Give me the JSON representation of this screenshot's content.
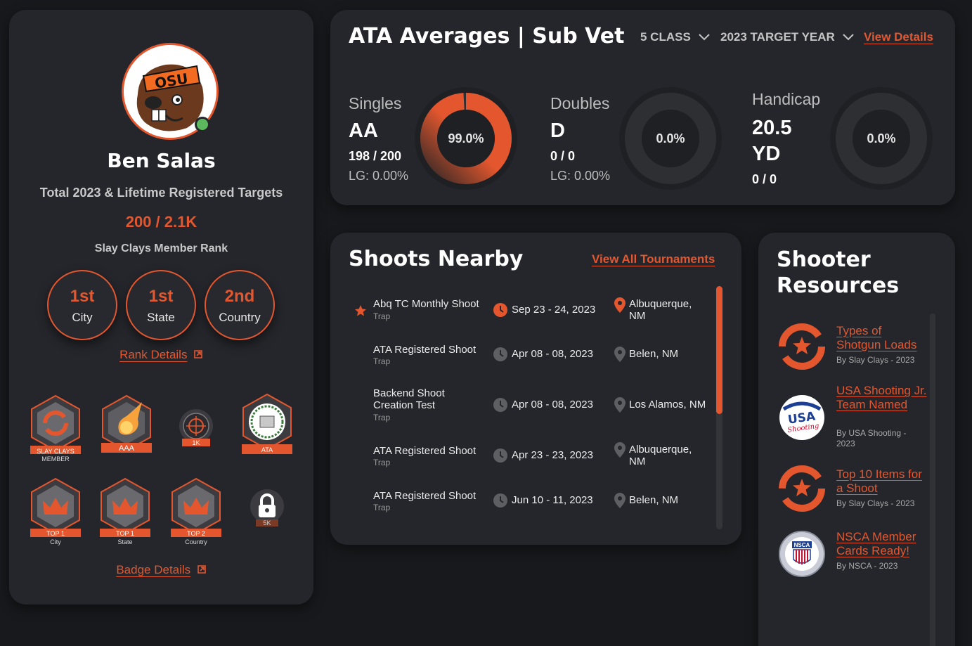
{
  "profile": {
    "avatar_logo_text": "OSU",
    "name": "Ben Salas",
    "targets_label": "Total 2023 & Lifetime Registered Targets",
    "targets_value": "200 / 2.1K",
    "rank_label": "Slay Clays Member Rank",
    "ranks": [
      {
        "value": "1st",
        "label": "City"
      },
      {
        "value": "1st",
        "label": "State"
      },
      {
        "value": "2nd",
        "label": "Country"
      }
    ],
    "rank_details_link": "Rank Details",
    "badges": [
      {
        "icon": "slay-clays-logo-icon",
        "ribbon": "SLAY CLAYS",
        "sub": "MEMBER"
      },
      {
        "icon": "fireball-icon",
        "ribbon": "AAA",
        "sub": ""
      },
      {
        "icon": "crosshair-icon",
        "ribbon": "1K",
        "sub": ""
      },
      {
        "icon": "ata-seal-icon",
        "ribbon": "ATA",
        "sub": ""
      },
      {
        "icon": "crown-icon",
        "ribbon": "TOP 1",
        "sub": "City"
      },
      {
        "icon": "crown-icon",
        "ribbon": "TOP 1",
        "sub": "State"
      },
      {
        "icon": "crown-icon",
        "ribbon": "TOP 2",
        "sub": "Country"
      },
      {
        "icon": "lock-icon",
        "ribbon": "5K",
        "sub": ""
      }
    ],
    "badge_details_link": "Badge Details"
  },
  "averages": {
    "title": "ATA Averages | Sub Vet",
    "class_dropdown": "5 CLASS",
    "year_dropdown": "2023 TARGET YEAR",
    "view_details": "View Details",
    "stats": [
      {
        "name": "Singles",
        "class": "AA",
        "score": "198 / 200",
        "lg": "LG: 0.00%",
        "percent_label": "99.0%",
        "percent": 0.99
      },
      {
        "name": "Doubles",
        "class": "D",
        "score": "0 / 0",
        "lg": "LG: 0.00%",
        "percent_label": "0.0%",
        "percent": 0
      },
      {
        "name": "Handicap",
        "class_line1": "20.5",
        "class_line2": "YD",
        "score": "0 / 0",
        "percent_label": "0.0%",
        "percent": 0
      }
    ]
  },
  "shoots": {
    "title": "Shoots Nearby",
    "view_all": "View All Tournaments",
    "rows": [
      {
        "name": "Abq TC Monthly Shoot",
        "type": "Trap",
        "date": "Sep 23 - 24, 2023",
        "location": "Albuquerque, NM",
        "starred": true
      },
      {
        "name": "ATA Registered Shoot",
        "type": "Trap",
        "date": "Apr 08 - 08, 2023",
        "location": "Belen, NM",
        "starred": false
      },
      {
        "name": "Backend Shoot Creation Test",
        "type": "Trap",
        "date": "Apr 08 - 08, 2023",
        "location": "Los Alamos, NM",
        "starred": false
      },
      {
        "name": "ATA Registered Shoot",
        "type": "Trap",
        "date": "Apr 23 - 23, 2023",
        "location": "Albuquerque, NM",
        "starred": false
      },
      {
        "name": "ATA Registered Shoot",
        "type": "Trap",
        "date": "Jun 10 - 11, 2023",
        "location": "Belen, NM",
        "starred": false
      }
    ]
  },
  "resources": {
    "title": "Shooter Resources",
    "items": [
      {
        "icon": "slay-clays-logo-icon",
        "title": "Types of Shotgun Loads",
        "by": "By Slay Clays - 2023"
      },
      {
        "icon": "usa-shooting-logo-icon",
        "logo_text": "USA Shooting",
        "title": "USA Shooting Jr. Team Named",
        "by": "By USA Shooting - 2023"
      },
      {
        "icon": "slay-clays-logo-icon",
        "title": "Top 10 Items for a Shoot",
        "by": "By Slay Clays - 2023"
      },
      {
        "icon": "nsca-logo-icon",
        "logo_text": "NSCA",
        "title": "NSCA Member Cards Ready!",
        "by": "By NSCA - 2023"
      }
    ]
  },
  "colors": {
    "accent": "#e4572e",
    "background": "#17191c",
    "card": "#24262b",
    "online": "#5cb85c"
  }
}
